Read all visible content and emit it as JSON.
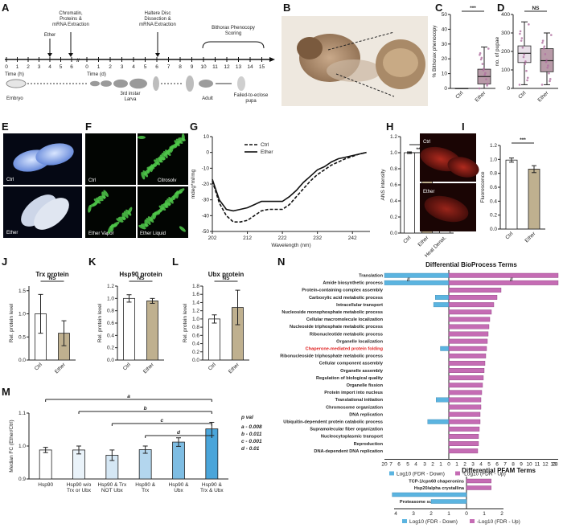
{
  "panels": {
    "A": "A",
    "B": "B",
    "C": "C",
    "D": "D",
    "E": "E",
    "F": "F",
    "G": "G",
    "H": "H",
    "I": "I",
    "J": "J",
    "K": "K",
    "L": "L",
    "M": "M",
    "N": "N"
  },
  "panel_a": {
    "time_h_label": "Time (h)",
    "time_d_label": "Time (d)",
    "hours": [
      "0",
      "1",
      "2",
      "3",
      "4",
      "5",
      "6"
    ],
    "days": [
      "0",
      "1",
      "2",
      "3",
      "4",
      "5",
      "6",
      "7",
      "8",
      "9",
      "10",
      "11",
      "12",
      "13",
      "14",
      "15"
    ],
    "ether": "Ether",
    "chromatin": "Chromatin,\nProteins &\nmRNA Extraction",
    "haltere": "Haltere Disc\nDissection &\nmRNA Extraction",
    "bithorax": "Bithorax Phenocopy\nScoring",
    "embryo": "Embryo",
    "larva": "3rd instar\nLarva",
    "adult": "Adult",
    "failed": "Failed-to-eclose\npupa"
  },
  "image_labels": {
    "e_ctrl": "Ctrl",
    "e_ether": "Ether",
    "f_ctrl": "Ctrl",
    "f_citrosolv": "Citrosolv",
    "f_vapor": "Ether Vapor",
    "f_liquid": "Ether Liquid",
    "i_ctrl": "Ctrl",
    "i_ether": "Ether"
  },
  "significance": {
    "c": "***",
    "d": "NS",
    "h1": "***",
    "h2": "**",
    "i": "***",
    "j": "NS",
    "k": "NS",
    "l": "NS"
  },
  "panel_m": {
    "brackets": [
      "a",
      "b",
      "c",
      "d"
    ],
    "pval_title": "p val",
    "pvals": [
      "a - 0.008",
      "b - 0.011",
      "c - 0.001",
      "d - 0.01"
    ]
  },
  "chart_data": [
    {
      "id": "C",
      "type": "box",
      "ylabel": "% Bithorax phenocopy",
      "ylim": [
        0,
        50
      ],
      "yticks": [
        "0",
        "10",
        "20",
        "30",
        "40",
        "50"
      ],
      "categories": [
        "Ctrl",
        "Ether"
      ],
      "boxes": [
        {
          "min": 0,
          "q1": 0,
          "median": 0,
          "q3": 0,
          "max": 0
        },
        {
          "min": 0,
          "q1": 3,
          "median": 8,
          "q3": 13,
          "max": 28
        }
      ],
      "colors": [
        "#e9e0e9",
        "#b89aa8"
      ]
    },
    {
      "id": "D",
      "type": "box",
      "ylabel": "no. of pupae",
      "ylim": [
        0,
        400
      ],
      "yticks": [
        "0",
        "100",
        "200",
        "300",
        "400"
      ],
      "categories": [
        "Ctrl",
        "Ether"
      ],
      "boxes": [
        {
          "min": 20,
          "q1": 140,
          "median": 190,
          "q3": 230,
          "max": 360
        },
        {
          "min": 20,
          "q1": 90,
          "median": 150,
          "q3": 215,
          "max": 300
        }
      ],
      "colors": [
        "#e9e0e9",
        "#b89aa8"
      ]
    },
    {
      "id": "G",
      "type": "line",
      "ylabel": "mdeg*ml/mg",
      "xlabel": "Wavelength (nm)",
      "xlim": [
        202,
        247
      ],
      "ylim": [
        -50,
        10
      ],
      "xticks": [
        "202",
        "212",
        "222",
        "232",
        "242"
      ],
      "yticks": [
        "10",
        "0",
        "-10",
        "-20",
        "-30",
        "-40",
        "-50"
      ],
      "series": [
        {
          "name": "Ctrl",
          "dash": true,
          "x": [
            202,
            204,
            206,
            208,
            210,
            212,
            214,
            216,
            218,
            220,
            222,
            224,
            226,
            228,
            230,
            232,
            234,
            236,
            238,
            240,
            242,
            244,
            246
          ],
          "y": [
            -18,
            -32,
            -40,
            -44,
            -44,
            -43,
            -40,
            -37,
            -36,
            -36,
            -36,
            -33,
            -28,
            -23,
            -18,
            -14,
            -11,
            -8,
            -6,
            -4,
            -2.5,
            -1,
            0
          ]
        },
        {
          "name": "Ether",
          "dash": false,
          "x": [
            202,
            204,
            206,
            208,
            210,
            212,
            214,
            216,
            218,
            220,
            222,
            224,
            226,
            228,
            230,
            232,
            234,
            236,
            238,
            240,
            242,
            244,
            246
          ],
          "y": [
            -17,
            -30,
            -36,
            -37,
            -36,
            -35,
            -33,
            -31,
            -31,
            -31,
            -31,
            -28,
            -24,
            -19,
            -15,
            -11,
            -9,
            -6,
            -4,
            -3,
            -2,
            -1,
            0
          ]
        }
      ]
    },
    {
      "id": "H",
      "type": "bar",
      "ylabel": "ANS intensity",
      "ylim": [
        0,
        1.2
      ],
      "yticks": [
        "0.0",
        "0.2",
        "0.4",
        "0.6",
        "0.8",
        "1.0",
        "1.2"
      ],
      "categories": [
        "Ctrl",
        "Ether",
        "Heat Denat."
      ],
      "values": [
        1.0,
        0.79,
        0.2
      ],
      "errors": [
        0.01,
        0.04,
        0.01
      ],
      "colors": [
        "#ffffff",
        "#bfb08f",
        "#ffffff"
      ]
    },
    {
      "id": "I",
      "type": "bar",
      "ylabel": "Fluorescence",
      "ylim": [
        0,
        1.2
      ],
      "yticks": [
        "0.0",
        "0.2",
        "0.4",
        "0.6",
        "0.8",
        "1.0",
        "1.2"
      ],
      "categories": [
        "Ctrl",
        "Ether"
      ],
      "values": [
        0.99,
        0.86
      ],
      "errors": [
        0.03,
        0.05
      ],
      "colors": [
        "#ffffff",
        "#bfb08f"
      ]
    },
    {
      "id": "J",
      "type": "bar",
      "title": "Trx protein",
      "ylabel": "Rel. protein level",
      "ylim": [
        0,
        1.6
      ],
      "yticks": [
        "0.0",
        "0.5",
        "1.0",
        "1.5"
      ],
      "categories": [
        "Ctrl",
        "Ether"
      ],
      "values": [
        1.0,
        0.58
      ],
      "errors": [
        0.42,
        0.27
      ],
      "colors": [
        "#ffffff",
        "#bfb08f"
      ]
    },
    {
      "id": "K",
      "type": "bar",
      "title": "Hsp90 protein",
      "ylabel": "Rel. protein level",
      "ylim": [
        0,
        1.2
      ],
      "yticks": [
        "0.0",
        "0.2",
        "0.4",
        "0.6",
        "0.8",
        "1.0",
        "1.2"
      ],
      "categories": [
        "Ctrl",
        "Ether"
      ],
      "values": [
        1.0,
        0.96
      ],
      "errors": [
        0.06,
        0.04
      ],
      "colors": [
        "#ffffff",
        "#bfb08f"
      ]
    },
    {
      "id": "L",
      "type": "bar",
      "title": "Ubx protein",
      "ylabel": "Rel. protein level",
      "ylim": [
        0,
        1.8
      ],
      "yticks": [
        "0.0",
        "0.2",
        "0.4",
        "0.6",
        "0.8",
        "1.0",
        "1.2",
        "1.4",
        "1.6",
        "1.8"
      ],
      "categories": [
        "Ctrl",
        "Ether"
      ],
      "values": [
        1.0,
        1.28
      ],
      "errors": [
        0.1,
        0.42
      ],
      "colors": [
        "#ffffff",
        "#bfb08f"
      ]
    },
    {
      "id": "M",
      "type": "bar",
      "ylabel": "Median FC (Ether/Ctrl)",
      "ylim": [
        0.9,
        1.1
      ],
      "yticks": [
        "0.9",
        "1.0",
        "1.1"
      ],
      "categories": [
        "Hsp90",
        "Hsp90 w/o\nTrx or Ubx",
        "Hsp90 & Trx\nNOT Ubx",
        "Hsp90 &\nTrx",
        "Hsp90 &\nUbx",
        "Hsp90 &\nTrx & Ubx"
      ],
      "values": [
        0.988,
        0.988,
        0.972,
        0.989,
        1.012,
        1.052
      ],
      "errors": [
        0.008,
        0.012,
        0.016,
        0.011,
        0.013,
        0.02
      ],
      "colors": [
        "#ffffff",
        "#eaf3fa",
        "#d5e7f4",
        "#b3d6ee",
        "#7ebde3",
        "#4aa5da"
      ]
    },
    {
      "id": "N_bio",
      "type": "bar",
      "orientation": "horizontal",
      "title": "Differential BioProcess Terms",
      "xticks": [
        "20",
        "7",
        "6",
        "5",
        "4",
        "3",
        "2",
        "1",
        "0",
        "1",
        "2",
        "3",
        "4",
        "5",
        "6",
        "7",
        "8",
        "9",
        "10",
        "11",
        "12",
        "13",
        "23"
      ],
      "legend": [
        "Log10 (FDR - Down)",
        "-Log10 (FDR - Up)"
      ],
      "colors": {
        "down": "#5bb4e0",
        "up": "#c56cb4"
      },
      "categories": [
        "Translation",
        "Amide biosynthetic process",
        "Protein-containing complex assembly",
        "Carboxylic acid metabolic process",
        "Intracellular transport",
        "Nucleoside monophosphate metabolic process",
        "Cellular macromolecule localization",
        "Nucleoside triphosphate metabolic process",
        "Ribonucleotide metabolic process",
        "Organelle localization",
        "Chaperone-mediated protein folding",
        "Ribonucleoside triphosphate metabolic process",
        "Cellular component assembly",
        "Organelle assembly",
        "Regulation of biological quality",
        "Organelle fission",
        "Protein import into nucleus",
        "Translational initiation",
        "Chromosome organization",
        "DNA replication",
        "Ubiquitin-dependent protein catabolic process",
        "Supramolecular fiber organization",
        "Nucleocytoplasmic transport",
        "Reproduction",
        "DNA-dependent DNA replication"
      ],
      "down": [
        20,
        20,
        0,
        1.6,
        1.8,
        0,
        0,
        0,
        0,
        0,
        1.0,
        0,
        0,
        0,
        0,
        0,
        0,
        1.5,
        0,
        0,
        2.5,
        0,
        0,
        0,
        0
      ],
      "up": [
        23,
        23,
        6.5,
        6,
        5.6,
        5.3,
        5.1,
        5.0,
        4.9,
        4.8,
        4.7,
        4.6,
        4.5,
        4.4,
        4.3,
        4.2,
        4.1,
        4.0,
        4.0,
        3.9,
        3.9,
        3.8,
        3.7,
        3.7,
        3.6
      ]
    },
    {
      "id": "N_pfam",
      "type": "bar",
      "orientation": "horizontal",
      "title": "Differential PFAM Terms",
      "xticks": [
        "4",
        "3",
        "2",
        "1",
        "0",
        "1",
        "2"
      ],
      "legend": [
        "Log10 (FDR - Down)",
        "-Log10 (FDR - Up)"
      ],
      "categories": [
        "TCP-1/cpn60 chaperonins",
        "Hsp20/alpha crystallina",
        "Proteasome subunit",
        "Proteasome subunit A N-term."
      ],
      "down": [
        0,
        0,
        4.2,
        2.0
      ],
      "up": [
        1.4,
        1.4,
        0,
        0
      ]
    }
  ]
}
